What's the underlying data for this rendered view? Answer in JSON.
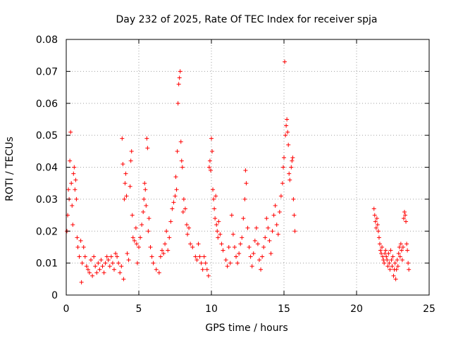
{
  "chart_data": {
    "type": "scatter",
    "title": "Day 232 of 2025, Rate Of TEC Index for receiver spja",
    "xlabel": "GPS time / hours",
    "ylabel": "ROTI / TECUs",
    "xlim": [
      0,
      25
    ],
    "ylim": [
      0,
      0.08
    ],
    "xticks": [
      "0",
      "5",
      "10",
      "15",
      "20",
      "25"
    ],
    "yticks": [
      "0",
      "0.01",
      "0.02",
      "0.03",
      "0.04",
      "0.05",
      "0.06",
      "0.07",
      "0.08"
    ],
    "grid": true,
    "marker": "+",
    "color": "#ff0000",
    "series": [
      {
        "points": [
          [
            0.05,
            0.02
          ],
          [
            0.1,
            0.025
          ],
          [
            0.15,
            0.033
          ],
          [
            0.2,
            0.03
          ],
          [
            0.25,
            0.042
          ],
          [
            0.3,
            0.051
          ],
          [
            0.35,
            0.035
          ],
          [
            0.4,
            0.028
          ],
          [
            0.45,
            0.022
          ],
          [
            0.5,
            0.038
          ],
          [
            0.55,
            0.04
          ],
          [
            0.6,
            0.033
          ],
          [
            0.65,
            0.036
          ],
          [
            0.7,
            0.03
          ],
          [
            0.75,
            0.018
          ],
          [
            0.8,
            0.015
          ],
          [
            0.9,
            0.012
          ],
          [
            1.0,
            0.017
          ],
          [
            1.05,
            0.004
          ],
          [
            1.1,
            0.01
          ],
          [
            1.2,
            0.015
          ],
          [
            1.3,
            0.012
          ],
          [
            1.4,
            0.009
          ],
          [
            1.5,
            0.008
          ],
          [
            1.6,
            0.007
          ],
          [
            1.7,
            0.011
          ],
          [
            1.8,
            0.006
          ],
          [
            1.9,
            0.012
          ],
          [
            2.0,
            0.009
          ],
          [
            2.1,
            0.007
          ],
          [
            2.2,
            0.01
          ],
          [
            2.3,
            0.008
          ],
          [
            2.4,
            0.011
          ],
          [
            2.5,
            0.009
          ],
          [
            2.6,
            0.007
          ],
          [
            2.7,
            0.01
          ],
          [
            2.8,
            0.012
          ],
          [
            2.9,
            0.011
          ],
          [
            3.0,
            0.009
          ],
          [
            3.1,
            0.012
          ],
          [
            3.2,
            0.01
          ],
          [
            3.3,
            0.008
          ],
          [
            3.4,
            0.013
          ],
          [
            3.5,
            0.012
          ],
          [
            3.6,
            0.01
          ],
          [
            3.7,
            0.007
          ],
          [
            3.8,
            0.009
          ],
          [
            3.85,
            0.049
          ],
          [
            3.9,
            0.041
          ],
          [
            3.95,
            0.005
          ],
          [
            4.0,
            0.03
          ],
          [
            4.05,
            0.035
          ],
          [
            4.1,
            0.038
          ],
          [
            4.15,
            0.031
          ],
          [
            4.2,
            0.013
          ],
          [
            4.3,
            0.011
          ],
          [
            4.4,
            0.034
          ],
          [
            4.45,
            0.042
          ],
          [
            4.5,
            0.045
          ],
          [
            4.55,
            0.025
          ],
          [
            4.6,
            0.018
          ],
          [
            4.7,
            0.017
          ],
          [
            4.8,
            0.021
          ],
          [
            4.85,
            0.016
          ],
          [
            4.9,
            0.01
          ],
          [
            5.0,
            0.015
          ],
          [
            5.1,
            0.018
          ],
          [
            5.2,
            0.022
          ],
          [
            5.3,
            0.026
          ],
          [
            5.35,
            0.03
          ],
          [
            5.4,
            0.035
          ],
          [
            5.45,
            0.033
          ],
          [
            5.5,
            0.028
          ],
          [
            5.55,
            0.049
          ],
          [
            5.6,
            0.046
          ],
          [
            5.65,
            0.02
          ],
          [
            5.7,
            0.024
          ],
          [
            5.8,
            0.015
          ],
          [
            5.9,
            0.012
          ],
          [
            6.0,
            0.01
          ],
          [
            6.2,
            0.008
          ],
          [
            6.4,
            0.007
          ],
          [
            6.5,
            0.012
          ],
          [
            6.6,
            0.014
          ],
          [
            6.7,
            0.013
          ],
          [
            6.8,
            0.016
          ],
          [
            6.9,
            0.02
          ],
          [
            7.0,
            0.014
          ],
          [
            7.1,
            0.018
          ],
          [
            7.2,
            0.023
          ],
          [
            7.3,
            0.027
          ],
          [
            7.4,
            0.029
          ],
          [
            7.5,
            0.031
          ],
          [
            7.55,
            0.037
          ],
          [
            7.6,
            0.033
          ],
          [
            7.65,
            0.045
          ],
          [
            7.7,
            0.06
          ],
          [
            7.75,
            0.066
          ],
          [
            7.8,
            0.068
          ],
          [
            7.85,
            0.07
          ],
          [
            7.9,
            0.048
          ],
          [
            7.95,
            0.042
          ],
          [
            8.0,
            0.04
          ],
          [
            8.05,
            0.026
          ],
          [
            8.1,
            0.03
          ],
          [
            8.2,
            0.027
          ],
          [
            8.3,
            0.022
          ],
          [
            8.35,
            0.019
          ],
          [
            8.45,
            0.021
          ],
          [
            8.55,
            0.016
          ],
          [
            8.7,
            0.015
          ],
          [
            8.9,
            0.012
          ],
          [
            9.0,
            0.011
          ],
          [
            9.1,
            0.016
          ],
          [
            9.2,
            0.012
          ],
          [
            9.3,
            0.01
          ],
          [
            9.4,
            0.008
          ],
          [
            9.5,
            0.012
          ],
          [
            9.6,
            0.01
          ],
          [
            9.7,
            0.008
          ],
          [
            9.8,
            0.006
          ],
          [
            9.85,
            0.04
          ],
          [
            9.9,
            0.042
          ],
          [
            9.95,
            0.039
          ],
          [
            10.0,
            0.049
          ],
          [
            10.05,
            0.045
          ],
          [
            10.1,
            0.033
          ],
          [
            10.15,
            0.03
          ],
          [
            10.2,
            0.027
          ],
          [
            10.25,
            0.024
          ],
          [
            10.3,
            0.031
          ],
          [
            10.35,
            0.022
          ],
          [
            10.4,
            0.02
          ],
          [
            10.45,
            0.018
          ],
          [
            10.5,
            0.023
          ],
          [
            10.6,
            0.019
          ],
          [
            10.7,
            0.016
          ],
          [
            10.8,
            0.014
          ],
          [
            11.0,
            0.011
          ],
          [
            11.1,
            0.009
          ],
          [
            11.2,
            0.015
          ],
          [
            11.3,
            0.01
          ],
          [
            11.4,
            0.025
          ],
          [
            11.5,
            0.019
          ],
          [
            11.6,
            0.015
          ],
          [
            11.7,
            0.012
          ],
          [
            11.8,
            0.01
          ],
          [
            11.9,
            0.013
          ],
          [
            12.0,
            0.016
          ],
          [
            12.1,
            0.018
          ],
          [
            12.2,
            0.024
          ],
          [
            12.3,
            0.03
          ],
          [
            12.35,
            0.039
          ],
          [
            12.4,
            0.035
          ],
          [
            12.5,
            0.021
          ],
          [
            12.6,
            0.015
          ],
          [
            12.7,
            0.012
          ],
          [
            12.8,
            0.009
          ],
          [
            12.9,
            0.013
          ],
          [
            13.0,
            0.017
          ],
          [
            13.1,
            0.021
          ],
          [
            13.2,
            0.016
          ],
          [
            13.3,
            0.011
          ],
          [
            13.4,
            0.008
          ],
          [
            13.5,
            0.012
          ],
          [
            13.6,
            0.015
          ],
          [
            13.7,
            0.018
          ],
          [
            13.8,
            0.024
          ],
          [
            13.9,
            0.021
          ],
          [
            14.0,
            0.017
          ],
          [
            14.1,
            0.013
          ],
          [
            14.2,
            0.02
          ],
          [
            14.3,
            0.025
          ],
          [
            14.4,
            0.028
          ],
          [
            14.5,
            0.022
          ],
          [
            14.6,
            0.019
          ],
          [
            14.7,
            0.026
          ],
          [
            14.8,
            0.031
          ],
          [
            14.9,
            0.035
          ],
          [
            14.95,
            0.04
          ],
          [
            15.0,
            0.043
          ],
          [
            15.05,
            0.073
          ],
          [
            15.1,
            0.05
          ],
          [
            15.15,
            0.053
          ],
          [
            15.2,
            0.055
          ],
          [
            15.25,
            0.051
          ],
          [
            15.3,
            0.047
          ],
          [
            15.35,
            0.038
          ],
          [
            15.4,
            0.036
          ],
          [
            15.5,
            0.04
          ],
          [
            15.55,
            0.042
          ],
          [
            15.6,
            0.043
          ],
          [
            15.65,
            0.03
          ],
          [
            15.7,
            0.025
          ],
          [
            15.75,
            0.02
          ],
          [
            21.2,
            0.027
          ],
          [
            21.25,
            0.025
          ],
          [
            21.3,
            0.023
          ],
          [
            21.35,
            0.021
          ],
          [
            21.4,
            0.024
          ],
          [
            21.45,
            0.022
          ],
          [
            21.5,
            0.02
          ],
          [
            21.55,
            0.018
          ],
          [
            21.6,
            0.016
          ],
          [
            21.65,
            0.014
          ],
          [
            21.7,
            0.013
          ],
          [
            21.75,
            0.015
          ],
          [
            21.8,
            0.012
          ],
          [
            21.85,
            0.011
          ],
          [
            21.9,
            0.01
          ],
          [
            21.95,
            0.013
          ],
          [
            22.0,
            0.014
          ],
          [
            22.05,
            0.012
          ],
          [
            22.1,
            0.011
          ],
          [
            22.15,
            0.009
          ],
          [
            22.2,
            0.013
          ],
          [
            22.25,
            0.01
          ],
          [
            22.3,
            0.008
          ],
          [
            22.35,
            0.014
          ],
          [
            22.4,
            0.011
          ],
          [
            22.45,
            0.009
          ],
          [
            22.5,
            0.012
          ],
          [
            22.55,
            0.006
          ],
          [
            22.6,
            0.008
          ],
          [
            22.65,
            0.01
          ],
          [
            22.7,
            0.005
          ],
          [
            22.75,
            0.008
          ],
          [
            22.8,
            0.011
          ],
          [
            22.85,
            0.009
          ],
          [
            22.9,
            0.013
          ],
          [
            22.95,
            0.015
          ],
          [
            23.0,
            0.012
          ],
          [
            23.05,
            0.016
          ],
          [
            23.1,
            0.014
          ],
          [
            23.15,
            0.011
          ],
          [
            23.2,
            0.015
          ],
          [
            23.25,
            0.024
          ],
          [
            23.3,
            0.026
          ],
          [
            23.35,
            0.025
          ],
          [
            23.4,
            0.023
          ],
          [
            23.45,
            0.016
          ],
          [
            23.5,
            0.014
          ],
          [
            23.55,
            0.01
          ],
          [
            23.6,
            0.008
          ]
        ]
      }
    ]
  }
}
